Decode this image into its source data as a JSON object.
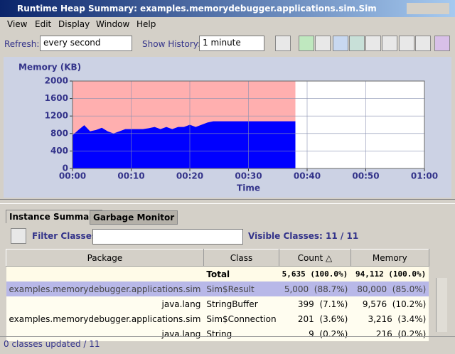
{
  "window": {
    "title": "Runtime Heap Summary: examples.memorydebugger.applications.sim.Sim"
  },
  "menu": [
    "View",
    "Edit",
    "Display",
    "Window",
    "Help"
  ],
  "toolbar": {
    "refresh_label": "Refresh:",
    "refresh_value": "every second",
    "history_label": "Show History:",
    "history_value": "1 minute"
  },
  "chart_data": {
    "type": "area",
    "ylabel": "Memory (KB)",
    "xlabel": "Time",
    "x": [
      0,
      1,
      2,
      3,
      4,
      5,
      6,
      7,
      8,
      9,
      10,
      11,
      12,
      13,
      14,
      15,
      16,
      17,
      18,
      19,
      20,
      21,
      22,
      23,
      24,
      25,
      26,
      27,
      28,
      29,
      30,
      31,
      32,
      33,
      34,
      35,
      36,
      37,
      38
    ],
    "series": [
      {
        "color": "#ffafaf",
        "values": [
          2000,
          2000,
          2000,
          2000,
          2000,
          2000,
          2000,
          2000,
          2000,
          2000,
          2000,
          2000,
          2000,
          2000,
          2000,
          2000,
          2000,
          2000,
          2000,
          2000,
          2000,
          2000,
          2000,
          2000,
          2000,
          2000,
          2000,
          2000,
          2000,
          2000,
          2000,
          2000,
          2000,
          2000,
          2000,
          2000,
          2000,
          2000,
          2000
        ]
      },
      {
        "color": "#0000ff",
        "values": [
          760,
          880,
          990,
          850,
          880,
          930,
          850,
          800,
          850,
          900,
          900,
          900,
          900,
          920,
          950,
          900,
          950,
          900,
          950,
          950,
          1000,
          950,
          1000,
          1050,
          1080,
          1080,
          1080,
          1080,
          1080,
          1080,
          1080,
          1080,
          1080,
          1080,
          1080,
          1080,
          1080,
          1080,
          1080
        ]
      }
    ],
    "xlim": [
      0,
      60
    ],
    "xticks": [
      {
        "value": 0,
        "label": "00:00"
      },
      {
        "value": 10,
        "label": "00:10"
      },
      {
        "value": 20,
        "label": "00:20"
      },
      {
        "value": 30,
        "label": "00:30"
      },
      {
        "value": 40,
        "label": "00:40"
      },
      {
        "value": 50,
        "label": "00:50"
      },
      {
        "value": 60,
        "label": "01:00"
      }
    ],
    "ylim": [
      0,
      2000
    ],
    "yticks": [
      0,
      400,
      800,
      1200,
      1600,
      2000
    ],
    "grid": true
  },
  "tabs": [
    "Instance Summary",
    "Garbage Monitor"
  ],
  "filter": {
    "label": "Filter Classes:",
    "visible": "Visible Classes: 11 / 11"
  },
  "table": {
    "header": [
      "Package",
      "Class",
      "Count △",
      "Memory"
    ],
    "total": [
      "Total",
      "5,635 (100.0%)",
      "94,112 (100.0%)"
    ],
    "rows": [
      [
        "examples.memorydebugger.applications.sim",
        "Sim$Result",
        "5,000  (88.7%)",
        "80,000  (85.0%)"
      ],
      [
        "java.lang",
        "StringBuffer",
        "399  (7.1%)",
        "9,576  (10.2%)"
      ],
      [
        "examples.memorydebugger.applications.sim",
        "Sim$Connection",
        "201  (3.6%)",
        "3,216  (3.4%)"
      ],
      [
        "java.lang",
        "String",
        "9  (0.2%)",
        "216  (0.2%)"
      ]
    ]
  },
  "status": "0 classes updated / 11"
}
